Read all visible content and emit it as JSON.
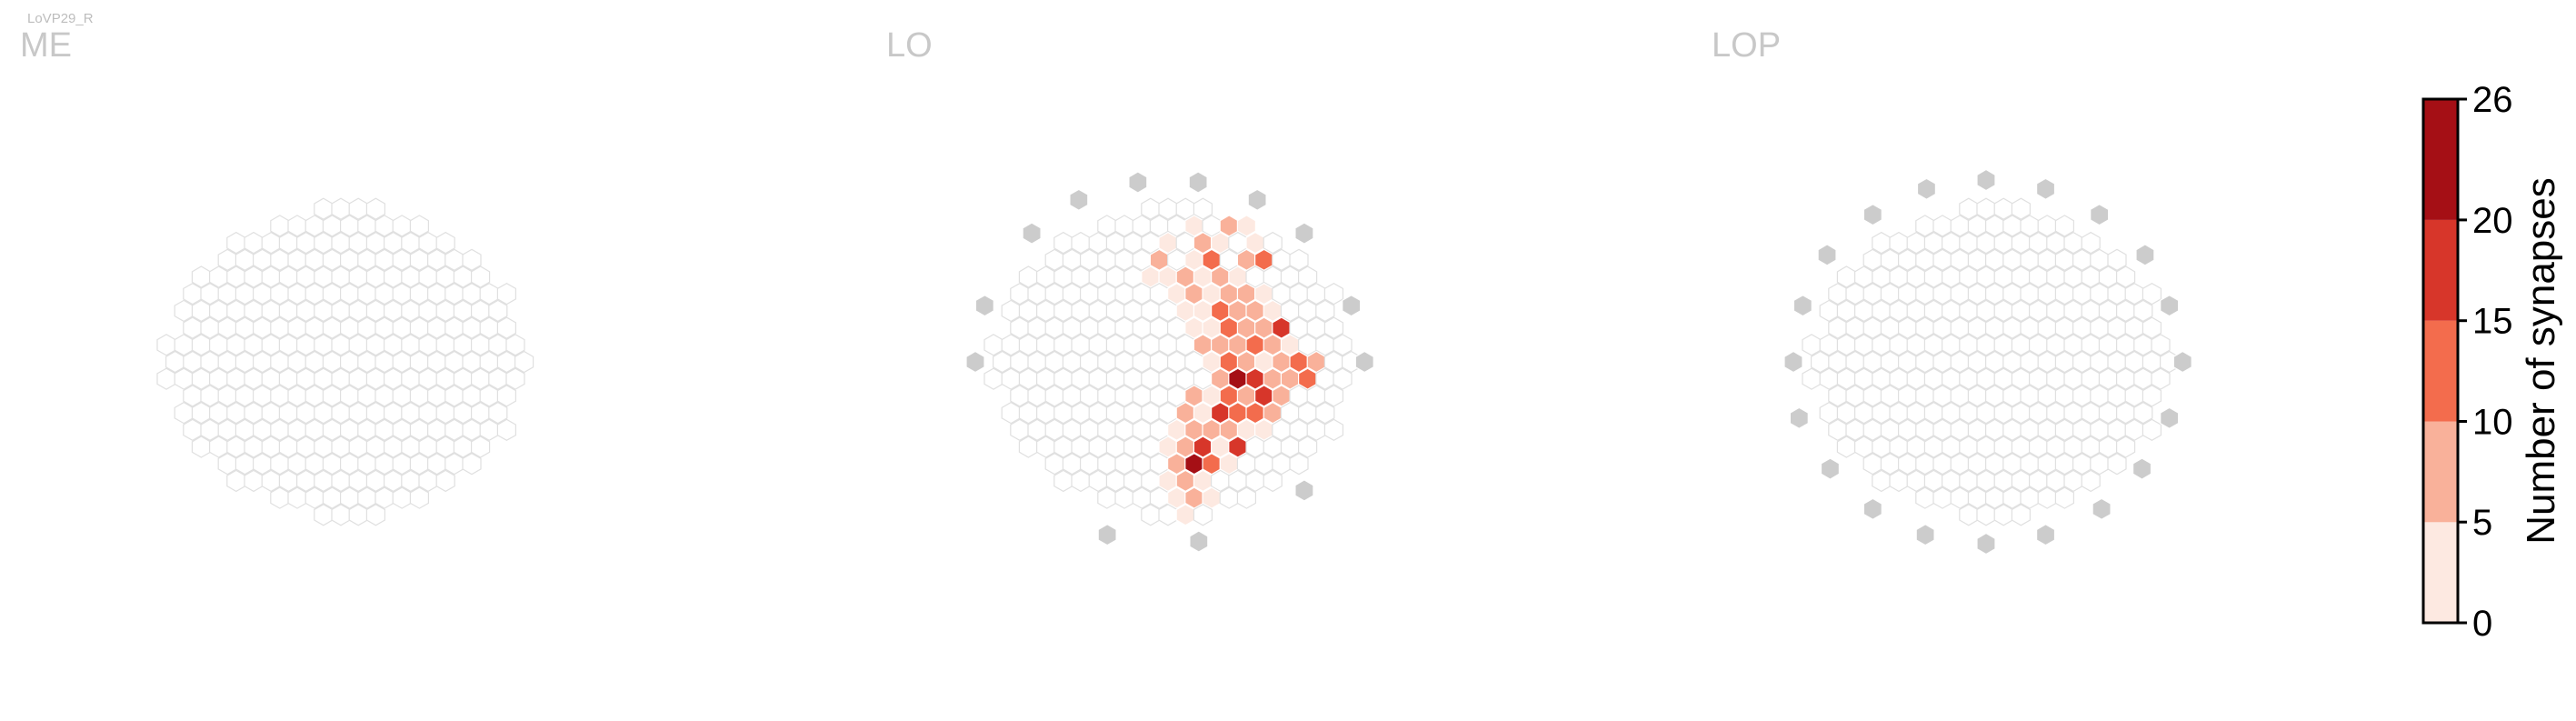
{
  "figure": {
    "cell_type_label": "LoVP29_R"
  },
  "chart_data": {
    "type": "heatmap",
    "panels": [
      {
        "name": "ME",
        "rows": [
          [
            9,
            12
          ],
          [
            6,
            14
          ],
          [
            4,
            16
          ],
          [
            3,
            17
          ],
          [
            2,
            18
          ],
          [
            1,
            19
          ],
          [
            1,
            19
          ],
          [
            1,
            19
          ],
          [
            0,
            20
          ],
          [
            0,
            20
          ],
          [
            0,
            20
          ],
          [
            1,
            19
          ],
          [
            1,
            19
          ],
          [
            1,
            19
          ],
          [
            2,
            18
          ],
          [
            3,
            17
          ],
          [
            4,
            16
          ],
          [
            6,
            14
          ],
          [
            9,
            12
          ]
        ],
        "highlighted": []
      },
      {
        "name": "LO",
        "rows": [
          [
            9,
            12
          ],
          [
            6,
            14
          ],
          [
            4,
            16
          ],
          [
            3,
            17
          ],
          [
            2,
            18
          ],
          [
            1,
            19
          ],
          [
            1,
            19
          ],
          [
            1,
            19
          ],
          [
            0,
            20
          ],
          [
            0,
            20
          ],
          [
            0,
            20
          ],
          [
            1,
            19
          ],
          [
            1,
            19
          ],
          [
            1,
            19
          ],
          [
            2,
            18
          ],
          [
            3,
            17
          ],
          [
            4,
            16
          ],
          [
            6,
            14
          ],
          [
            9,
            12
          ]
        ],
        "highlighted": [
          [
            1,
            11,
            2
          ],
          [
            1,
            13,
            6
          ],
          [
            1,
            14,
            3
          ],
          [
            2,
            10,
            3
          ],
          [
            2,
            12,
            5
          ],
          [
            2,
            13,
            3
          ],
          [
            2,
            15,
            1
          ],
          [
            3,
            9,
            6
          ],
          [
            3,
            11,
            4
          ],
          [
            3,
            12,
            10
          ],
          [
            3,
            14,
            7
          ],
          [
            3,
            15,
            14
          ],
          [
            4,
            9,
            2
          ],
          [
            4,
            10,
            2
          ],
          [
            4,
            11,
            7
          ],
          [
            4,
            12,
            4
          ],
          [
            4,
            13,
            5
          ],
          [
            4,
            14,
            3
          ],
          [
            5,
            10,
            1
          ],
          [
            5,
            11,
            6
          ],
          [
            5,
            12,
            3
          ],
          [
            5,
            13,
            8
          ],
          [
            5,
            14,
            5
          ],
          [
            5,
            15,
            2
          ],
          [
            6,
            11,
            4
          ],
          [
            6,
            12,
            3
          ],
          [
            6,
            13,
            10
          ],
          [
            6,
            14,
            7
          ],
          [
            6,
            15,
            5
          ],
          [
            6,
            16,
            2
          ],
          [
            7,
            11,
            2
          ],
          [
            7,
            12,
            4
          ],
          [
            7,
            13,
            12
          ],
          [
            7,
            14,
            6
          ],
          [
            7,
            15,
            8
          ],
          [
            7,
            16,
            17
          ],
          [
            8,
            12,
            6
          ],
          [
            8,
            13,
            9
          ],
          [
            8,
            14,
            5
          ],
          [
            8,
            15,
            13
          ],
          [
            8,
            16,
            8
          ],
          [
            8,
            17,
            4
          ],
          [
            9,
            12,
            3
          ],
          [
            9,
            13,
            11
          ],
          [
            9,
            14,
            6
          ],
          [
            9,
            15,
            4
          ],
          [
            9,
            16,
            9
          ],
          [
            9,
            17,
            14
          ],
          [
            9,
            18,
            6
          ],
          [
            10,
            13,
            5
          ],
          [
            10,
            14,
            22
          ],
          [
            10,
            15,
            17
          ],
          [
            10,
            16,
            9
          ],
          [
            10,
            17,
            6
          ],
          [
            10,
            18,
            11
          ],
          [
            11,
            11,
            8
          ],
          [
            11,
            12,
            4
          ],
          [
            11,
            13,
            13
          ],
          [
            11,
            14,
            9
          ],
          [
            11,
            15,
            16
          ],
          [
            11,
            16,
            5
          ],
          [
            12,
            11,
            7
          ],
          [
            12,
            12,
            3
          ],
          [
            12,
            13,
            17
          ],
          [
            12,
            14,
            11
          ],
          [
            12,
            15,
            14
          ],
          [
            12,
            16,
            7
          ],
          [
            13,
            10,
            3
          ],
          [
            13,
            11,
            5
          ],
          [
            13,
            12,
            9
          ],
          [
            13,
            13,
            6
          ],
          [
            13,
            14,
            3
          ],
          [
            13,
            15,
            4
          ],
          [
            14,
            10,
            2
          ],
          [
            14,
            11,
            7
          ],
          [
            14,
            12,
            16
          ],
          [
            14,
            13,
            4
          ],
          [
            14,
            14,
            18
          ],
          [
            15,
            10,
            5
          ],
          [
            15,
            11,
            24
          ],
          [
            15,
            12,
            10
          ],
          [
            15,
            13,
            3
          ],
          [
            16,
            10,
            3
          ],
          [
            16,
            11,
            7
          ],
          [
            16,
            12,
            4
          ],
          [
            17,
            10,
            2
          ],
          [
            17,
            11,
            5
          ],
          [
            17,
            12,
            1
          ],
          [
            18,
            11,
            3
          ]
        ]
      },
      {
        "name": "LOP",
        "rows": [
          [
            9,
            12
          ],
          [
            6,
            14
          ],
          [
            4,
            16
          ],
          [
            3,
            17
          ],
          [
            2,
            18
          ],
          [
            1,
            19
          ],
          [
            1,
            19
          ],
          [
            1,
            19
          ],
          [
            0,
            20
          ],
          [
            0,
            20
          ],
          [
            0,
            20
          ],
          [
            1,
            19
          ],
          [
            1,
            19
          ],
          [
            1,
            19
          ],
          [
            2,
            18
          ],
          [
            3,
            17
          ],
          [
            4,
            16
          ],
          [
            6,
            14
          ],
          [
            9,
            12
          ]
        ],
        "highlighted": []
      }
    ],
    "colorbar": {
      "label": "Number of synapses",
      "ticks": [
        0,
        5,
        10,
        15,
        20,
        26
      ],
      "vmin": 0,
      "vmax": 26,
      "colors": [
        "#fde9e1",
        "#f9b19a",
        "#f36c4d",
        "#d7362a",
        "#a50f15"
      ]
    },
    "colors": {
      "empty_stroke": "#e0e0e0",
      "outside_fill": "#cccccc",
      "panel_title": "#c8c8c8"
    }
  }
}
